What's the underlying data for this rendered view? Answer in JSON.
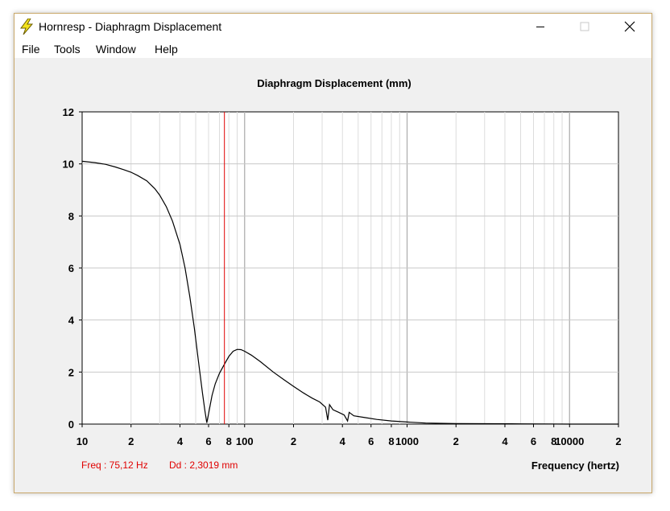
{
  "window": {
    "title": "Hornresp - Diaphragm Displacement",
    "controls": [
      "minimize",
      "maximize",
      "close"
    ]
  },
  "menu": {
    "items": [
      "File",
      "Tools",
      "Window",
      "Help"
    ]
  },
  "status": {
    "freq": "Freq : 75,12 Hz",
    "dd": "Dd : 2,3019 mm",
    "color": "#e00000"
  },
  "chart_data": {
    "type": "line",
    "title": "Diaphragm Displacement (mm)",
    "xlabel": "Frequency (hertz)",
    "ylabel": "",
    "x_scale": "log",
    "xlim": [
      10,
      20000
    ],
    "ylim": [
      0,
      12
    ],
    "y_ticks": [
      "0",
      "2",
      "4",
      "6",
      "8",
      "10",
      "12"
    ],
    "x_tick_labels": [
      {
        "x": 10,
        "label": "10"
      },
      {
        "x": 20,
        "label": "2"
      },
      {
        "x": 40,
        "label": "4"
      },
      {
        "x": 60,
        "label": "6"
      },
      {
        "x": 80,
        "label": "8"
      },
      {
        "x": 100,
        "label": "100"
      },
      {
        "x": 200,
        "label": "2"
      },
      {
        "x": 400,
        "label": "4"
      },
      {
        "x": 600,
        "label": "6"
      },
      {
        "x": 800,
        "label": "8"
      },
      {
        "x": 1000,
        "label": "1000"
      },
      {
        "x": 2000,
        "label": "2"
      },
      {
        "x": 4000,
        "label": "4"
      },
      {
        "x": 6000,
        "label": "6"
      },
      {
        "x": 8000,
        "label": "8"
      },
      {
        "x": 10000,
        "label": "10000"
      },
      {
        "x": 20000,
        "label": "2"
      }
    ],
    "grid": true,
    "cursor": {
      "x": 75.12,
      "y": 2.3019,
      "color": "#e00000"
    },
    "series": [
      {
        "color": "#000000",
        "points": [
          [
            10,
            10.1
          ],
          [
            12,
            10.05
          ],
          [
            14,
            9.98
          ],
          [
            16,
            9.88
          ],
          [
            18,
            9.78
          ],
          [
            20,
            9.68
          ],
          [
            22,
            9.55
          ],
          [
            25,
            9.35
          ],
          [
            28,
            9.05
          ],
          [
            30,
            8.8
          ],
          [
            33,
            8.35
          ],
          [
            36,
            7.8
          ],
          [
            40,
            6.9
          ],
          [
            43,
            6.0
          ],
          [
            46,
            4.9
          ],
          [
            49,
            3.7
          ],
          [
            52,
            2.4
          ],
          [
            55,
            1.2
          ],
          [
            57,
            0.5
          ],
          [
            58.5,
            0.05
          ],
          [
            60,
            0.4
          ],
          [
            63,
            1.1
          ],
          [
            66,
            1.55
          ],
          [
            70,
            1.95
          ],
          [
            75.12,
            2.3
          ],
          [
            80,
            2.6
          ],
          [
            85,
            2.8
          ],
          [
            90,
            2.87
          ],
          [
            95,
            2.86
          ],
          [
            100,
            2.8
          ],
          [
            110,
            2.65
          ],
          [
            125,
            2.4
          ],
          [
            150,
            2.0
          ],
          [
            175,
            1.7
          ],
          [
            200,
            1.45
          ],
          [
            230,
            1.2
          ],
          [
            260,
            1.0
          ],
          [
            290,
            0.85
          ],
          [
            315,
            0.65
          ],
          [
            325,
            0.15
          ],
          [
            333,
            0.75
          ],
          [
            350,
            0.55
          ],
          [
            380,
            0.45
          ],
          [
            410,
            0.35
          ],
          [
            430,
            0.12
          ],
          [
            440,
            0.45
          ],
          [
            470,
            0.32
          ],
          [
            550,
            0.25
          ],
          [
            650,
            0.18
          ],
          [
            800,
            0.12
          ],
          [
            1000,
            0.08
          ],
          [
            1300,
            0.04
          ],
          [
            2000,
            0.02
          ],
          [
            5000,
            0.01
          ],
          [
            10000,
            0.0
          ],
          [
            20000,
            0.0
          ]
        ]
      }
    ]
  }
}
